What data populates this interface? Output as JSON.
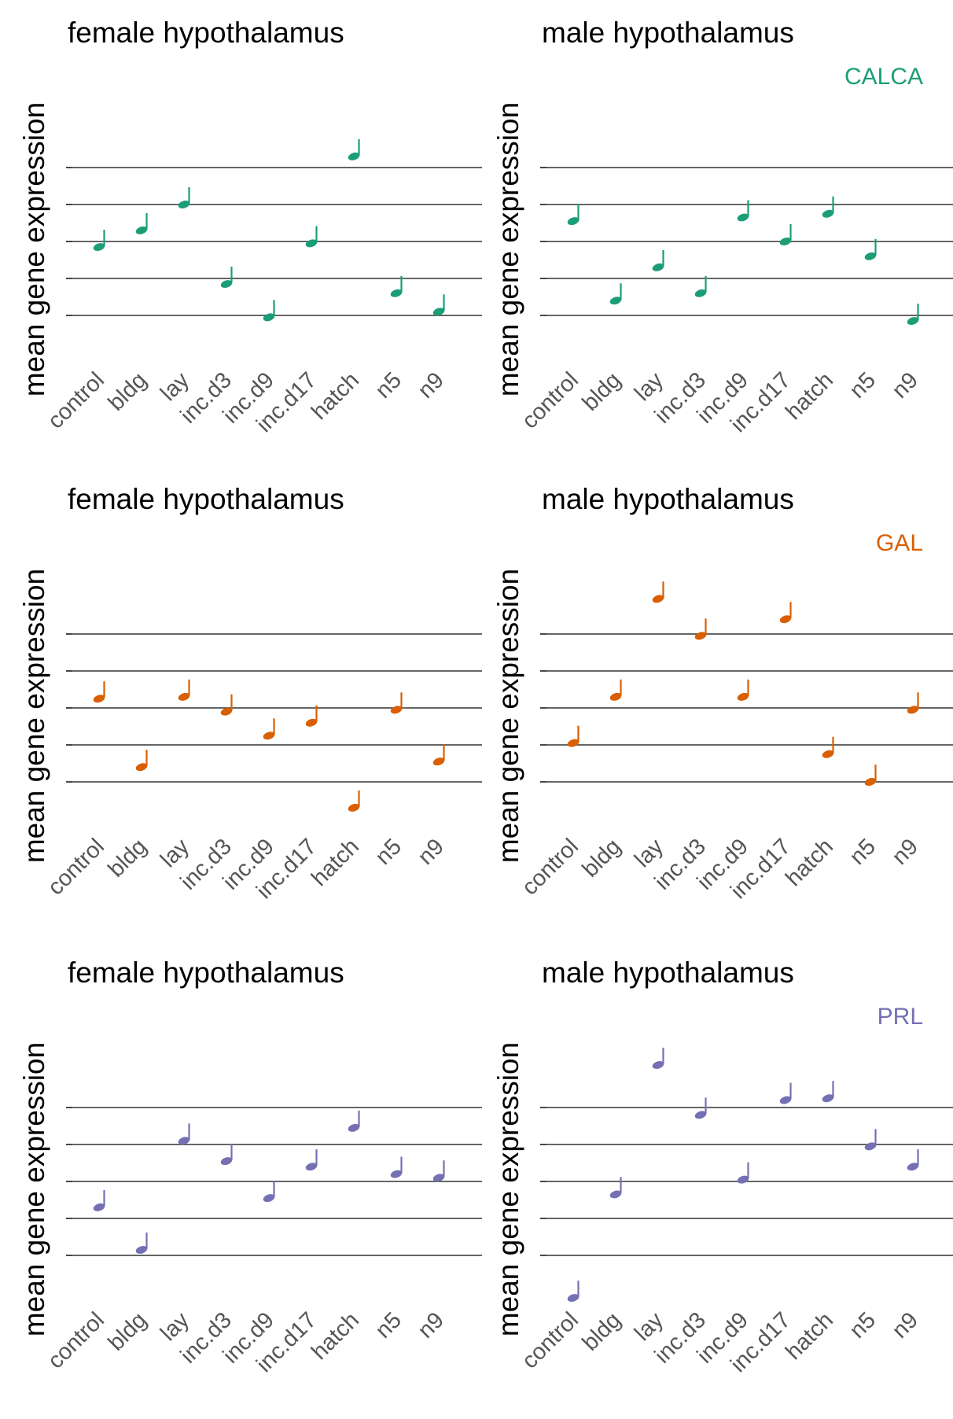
{
  "chart_data": [
    {
      "type": "scatter",
      "title": "female hypothalamus",
      "ylabel": "mean gene expression",
      "gene": "CALCA",
      "color": "#1b9e77",
      "categories": [
        "control",
        "bldg",
        "lay",
        "inc.d3",
        "inc.d9",
        "inc.d17",
        "hatch",
        "n5",
        "n9"
      ],
      "values": [
        3.85,
        4.3,
        5.0,
        2.85,
        1.95,
        3.95,
        6.3,
        2.6,
        2.1
      ],
      "staff_lines": [
        2,
        3,
        4,
        5,
        6
      ],
      "ylim": [
        0.5,
        8
      ]
    },
    {
      "type": "scatter",
      "title": "male hypothalamus",
      "ylabel": "mean gene expression",
      "gene": "CALCA",
      "gene_label": "CALCA",
      "color": "#1b9e77",
      "categories": [
        "control",
        "bldg",
        "lay",
        "inc.d3",
        "inc.d9",
        "inc.d17",
        "hatch",
        "n5",
        "n9"
      ],
      "values": [
        4.55,
        2.4,
        3.3,
        2.6,
        4.65,
        4.0,
        4.75,
        3.6,
        1.85
      ],
      "staff_lines": [
        2,
        3,
        4,
        5,
        6
      ],
      "ylim": [
        0.5,
        8
      ]
    },
    {
      "type": "scatter",
      "title": "female hypothalamus",
      "ylabel": "mean gene expression",
      "gene": "GAL",
      "color": "#d95f02",
      "categories": [
        "control",
        "bldg",
        "lay",
        "inc.d3",
        "inc.d9",
        "inc.d17",
        "hatch",
        "n5",
        "n9"
      ],
      "values": [
        4.25,
        2.4,
        4.3,
        3.9,
        3.25,
        3.6,
        1.3,
        3.95,
        2.55
      ],
      "staff_lines": [
        2,
        3,
        4,
        5,
        6
      ],
      "ylim": [
        0.5,
        8
      ]
    },
    {
      "type": "scatter",
      "title": "male hypothalamus",
      "ylabel": "mean gene expression",
      "gene": "GAL",
      "gene_label": "GAL",
      "color": "#d95f02",
      "categories": [
        "control",
        "bldg",
        "lay",
        "inc.d3",
        "inc.d9",
        "inc.d17",
        "hatch",
        "n5",
        "n9"
      ],
      "values": [
        3.05,
        4.3,
        6.95,
        5.95,
        4.3,
        6.4,
        2.75,
        2.0,
        3.95
      ],
      "staff_lines": [
        2,
        3,
        4,
        5,
        6
      ],
      "ylim": [
        0.5,
        8
      ]
    },
    {
      "type": "scatter",
      "title": "female hypothalamus",
      "ylabel": "mean gene expression",
      "gene": "PRL",
      "color": "#7570b3",
      "categories": [
        "control",
        "bldg",
        "lay",
        "inc.d3",
        "inc.d9",
        "inc.d17",
        "hatch",
        "n5",
        "n9"
      ],
      "values": [
        3.3,
        2.15,
        5.1,
        4.55,
        3.55,
        4.4,
        5.45,
        4.2,
        4.1
      ],
      "staff_lines": [
        2,
        3,
        4,
        5,
        6
      ],
      "ylim": [
        0.5,
        8
      ]
    },
    {
      "type": "scatter",
      "title": "male hypothalamus",
      "ylabel": "mean gene expression",
      "gene": "PRL",
      "gene_label": "PRL",
      "color": "#7570b3",
      "categories": [
        "control",
        "bldg",
        "lay",
        "inc.d3",
        "inc.d9",
        "inc.d17",
        "hatch",
        "n5",
        "n9"
      ],
      "values": [
        0.85,
        3.65,
        7.15,
        5.8,
        4.05,
        6.2,
        6.25,
        4.95,
        4.4
      ],
      "staff_lines": [
        2,
        3,
        4,
        5,
        6
      ],
      "ylim": [
        0.5,
        8
      ]
    }
  ]
}
